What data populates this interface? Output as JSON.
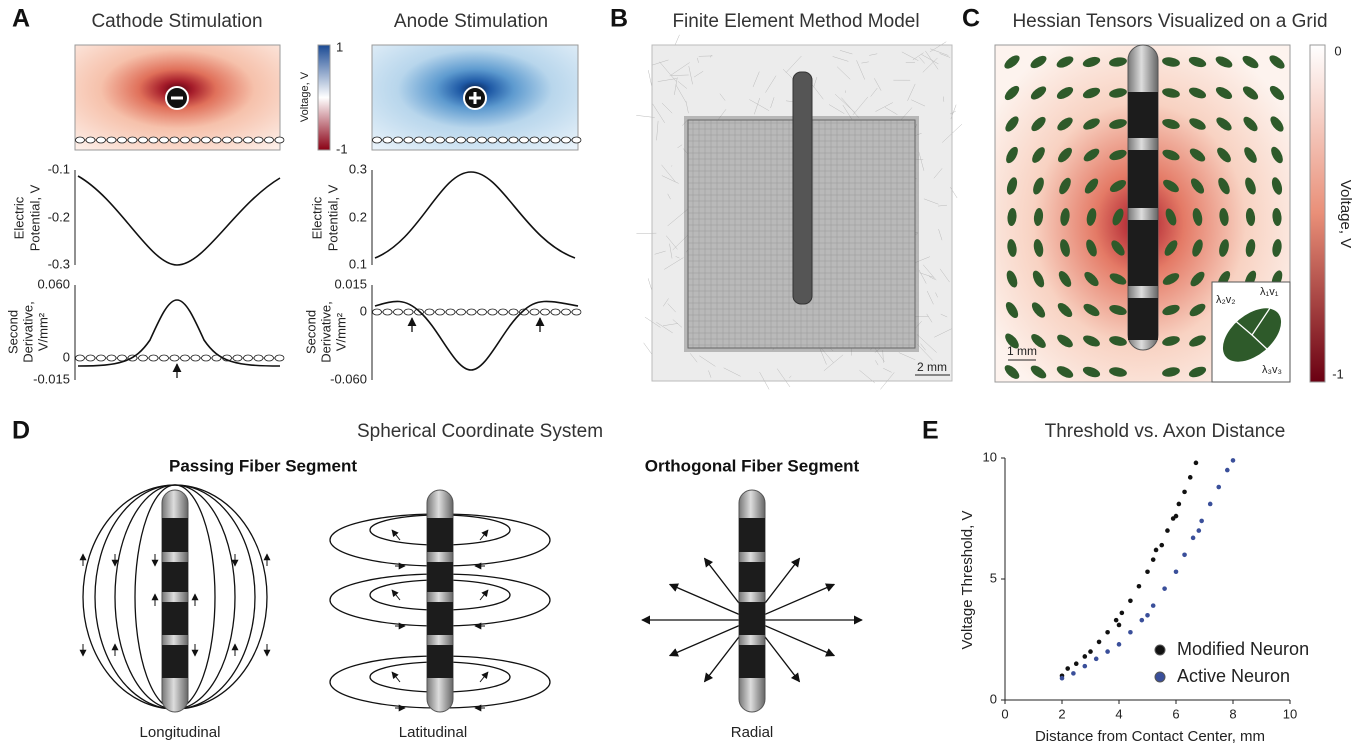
{
  "panels": {
    "A": {
      "letter": "A",
      "cathode_title": "Cathode Stimulation",
      "anode_title": "Anode Stimulation",
      "colorbar": {
        "label": "Voltage, V",
        "ticks": [
          1,
          -1
        ]
      },
      "potential": {
        "ylabel": [
          "Electric",
          "Potential, V"
        ],
        "cathode_yticks": [
          -0.1,
          -0.2,
          -0.3
        ],
        "anode_yticks": [
          0.3,
          0.2,
          0.1
        ]
      },
      "derivative": {
        "ylabel": [
          "Second",
          "Derivative,",
          "V/mm²"
        ],
        "cathode_yticks": [
          {
            "value": 0.06,
            "label": "0.060"
          },
          0,
          {
            "value": -0.015,
            "label": "-0.015"
          }
        ],
        "anode_yticks": [
          {
            "value": 0.015,
            "label": "0.015"
          },
          0,
          {
            "value": -0.06,
            "label": "-0.060"
          }
        ]
      }
    },
    "B": {
      "letter": "B",
      "title": "Finite Element Method Model",
      "scale": "2 mm"
    },
    "C": {
      "letter": "C",
      "title": "Hessian Tensors Visualized on a Grid",
      "scale": "1 mm",
      "colorbar": {
        "label": "Voltage, V",
        "ticks": [
          0,
          -1
        ]
      },
      "inset": [
        "λ₂v₂",
        "λ₁v₁",
        "λ₃v₃"
      ]
    },
    "D": {
      "letter": "D",
      "title": "Spherical Coordinate System",
      "passing": "Passing Fiber Segment",
      "orthogonal": "Orthogonal Fiber Segment",
      "labels": [
        "Longitudinal",
        "Latitudinal",
        "Radial"
      ]
    },
    "E": {
      "letter": "E",
      "chart": {
        "type": "scatter",
        "title": "Threshold vs. Axon Distance",
        "x_label": "Distance from Contact Center, mm",
        "y_label": "Voltage Threshold, V",
        "xlim": [
          0,
          10
        ],
        "xticks": [
          0,
          2,
          4,
          6,
          8,
          10
        ],
        "ylim": [
          0,
          10
        ],
        "yticks": [
          0,
          5,
          10
        ],
        "series": [
          {
            "name": "Modified Neuron",
            "color": "#111111",
            "x": [
              2.0,
              2.2,
              2.5,
              2.8,
              3.0,
              3.3,
              3.6,
              3.9,
              4.1,
              4.4,
              4.7,
              5.0,
              5.2,
              5.5,
              5.7,
              5.9,
              6.1,
              6.3,
              6.5,
              6.7,
              4.0,
              5.3,
              6.0
            ],
            "values": [
              1.0,
              1.3,
              1.5,
              1.8,
              2.0,
              2.4,
              2.8,
              3.3,
              3.6,
              4.1,
              4.7,
              5.3,
              5.8,
              6.4,
              7.0,
              7.5,
              8.1,
              8.6,
              9.2,
              9.8,
              3.1,
              6.2,
              7.6
            ]
          },
          {
            "name": "Active Neuron",
            "color": "#3a4f9a",
            "x": [
              2.0,
              2.4,
              2.8,
              3.2,
              3.6,
              4.0,
              4.4,
              4.8,
              5.2,
              5.6,
              6.0,
              6.3,
              6.6,
              6.9,
              7.2,
              7.5,
              7.8,
              8.0,
              5.0,
              6.8
            ],
            "values": [
              0.9,
              1.1,
              1.4,
              1.7,
              2.0,
              2.3,
              2.8,
              3.3,
              3.9,
              4.6,
              5.3,
              6.0,
              6.7,
              7.4,
              8.1,
              8.8,
              9.5,
              9.9,
              3.5,
              7.0
            ]
          }
        ]
      }
    }
  }
}
